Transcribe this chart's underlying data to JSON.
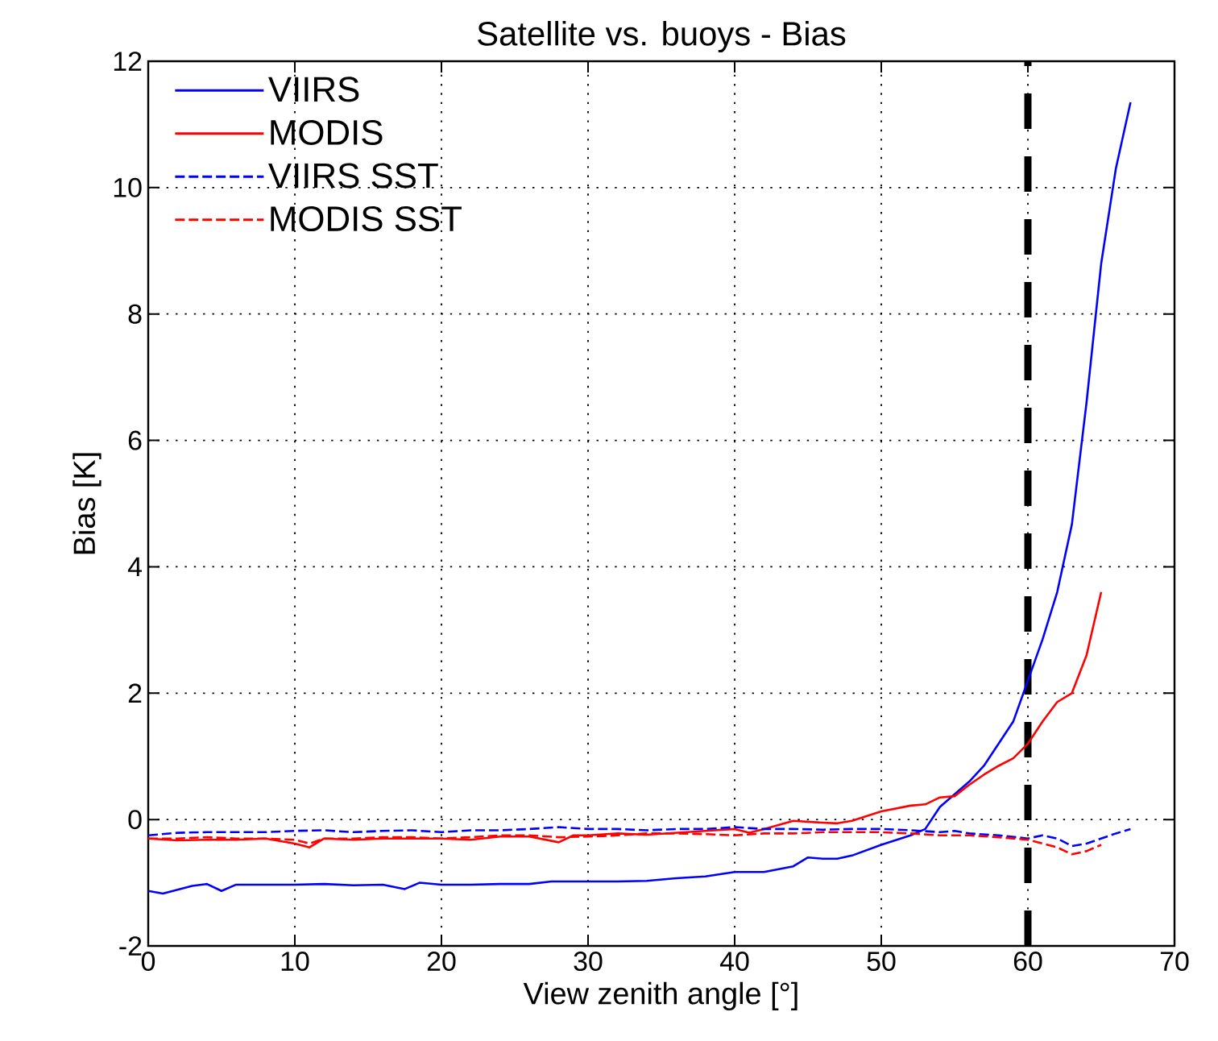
{
  "chart_data": {
    "type": "line",
    "title": "Satellite vs. buoys - Bias",
    "xlabel": "View zenith angle [°]",
    "ylabel": "Bias [K]",
    "xlim": [
      0,
      70
    ],
    "ylim": [
      -2,
      12
    ],
    "xticks": [
      0,
      10,
      20,
      30,
      40,
      50,
      60,
      70
    ],
    "yticks": [
      -2,
      0,
      2,
      4,
      6,
      8,
      10,
      12
    ],
    "grid": true,
    "legend": "top left",
    "ref_lines": [
      {
        "axis": "x",
        "value": 60,
        "color": "#000000",
        "line_style": "dashed"
      }
    ],
    "series": [
      {
        "name": "VIIRS",
        "color": "#0000ff",
        "line_style": "solid",
        "x": [
          0,
          1,
          3,
          4,
          5,
          6,
          8,
          10,
          12,
          14,
          16,
          17.5,
          18.5,
          20,
          22,
          24,
          26,
          27.5,
          30,
          32,
          34,
          36,
          38,
          40,
          42,
          44,
          45,
          46,
          47,
          48,
          50,
          52,
          53,
          54,
          55,
          56,
          57,
          58,
          59,
          60,
          61,
          62,
          63,
          64,
          65,
          66,
          67
        ],
        "values": [
          -1.13,
          -1.17,
          -1.05,
          -1.02,
          -1.13,
          -1.03,
          -1.03,
          -1.03,
          -1.02,
          -1.04,
          -1.03,
          -1.1,
          -1.0,
          -1.03,
          -1.03,
          -1.02,
          -1.02,
          -0.98,
          -0.98,
          -0.98,
          -0.97,
          -0.93,
          -0.9,
          -0.83,
          -0.83,
          -0.74,
          -0.6,
          -0.62,
          -0.62,
          -0.57,
          -0.4,
          -0.25,
          -0.15,
          0.2,
          0.4,
          0.6,
          0.85,
          1.2,
          1.55,
          2.2,
          2.85,
          3.6,
          4.67,
          6.6,
          8.8,
          10.3,
          11.35
        ]
      },
      {
        "name": "MODIS",
        "color": "#ff0000",
        "line_style": "solid",
        "x": [
          0,
          2,
          4,
          6,
          8,
          10,
          11,
          12,
          14,
          16,
          18,
          20,
          22,
          24,
          26,
          28,
          29,
          30,
          32,
          34,
          36,
          38,
          40,
          41,
          42,
          44,
          46,
          47,
          48,
          50,
          52,
          53,
          54,
          55,
          56,
          57,
          58,
          59,
          60,
          61,
          62,
          63,
          64,
          64.7,
          65
        ],
        "values": [
          -0.3,
          -0.33,
          -0.32,
          -0.32,
          -0.3,
          -0.38,
          -0.44,
          -0.3,
          -0.32,
          -0.3,
          -0.3,
          -0.3,
          -0.32,
          -0.27,
          -0.27,
          -0.36,
          -0.25,
          -0.25,
          -0.22,
          -0.24,
          -0.21,
          -0.18,
          -0.15,
          -0.21,
          -0.15,
          -0.02,
          -0.05,
          -0.06,
          -0.02,
          0.13,
          0.22,
          0.24,
          0.35,
          0.37,
          0.55,
          0.71,
          0.85,
          0.97,
          1.2,
          1.55,
          1.86,
          2.0,
          2.6,
          3.3,
          3.6
        ]
      },
      {
        "name": "VIIRS SST",
        "color": "#0000ff",
        "line_style": "dashed",
        "x": [
          0,
          2,
          4,
          6,
          8,
          10,
          12,
          14,
          16,
          18,
          20,
          22,
          24,
          26,
          28,
          30,
          32,
          34,
          36,
          38,
          40,
          42,
          44,
          46,
          48,
          50,
          52,
          54,
          55,
          56,
          58,
          60,
          61,
          62,
          63,
          64,
          65,
          66,
          67
        ],
        "values": [
          -0.25,
          -0.21,
          -0.2,
          -0.2,
          -0.2,
          -0.18,
          -0.17,
          -0.2,
          -0.18,
          -0.17,
          -0.2,
          -0.17,
          -0.17,
          -0.15,
          -0.12,
          -0.15,
          -0.15,
          -0.17,
          -0.15,
          -0.15,
          -0.12,
          -0.15,
          -0.15,
          -0.16,
          -0.15,
          -0.15,
          -0.17,
          -0.2,
          -0.18,
          -0.22,
          -0.25,
          -0.3,
          -0.25,
          -0.3,
          -0.42,
          -0.38,
          -0.3,
          -0.22,
          -0.15
        ]
      },
      {
        "name": "MODIS SST",
        "color": "#ff0000",
        "line_style": "dashed",
        "x": [
          0,
          2,
          4,
          6,
          8,
          10,
          11,
          12,
          14,
          16,
          18,
          20,
          22,
          24,
          26,
          28,
          30,
          32,
          34,
          36,
          38,
          40,
          42,
          44,
          46,
          48,
          50,
          52,
          54,
          56,
          58,
          60,
          61,
          62,
          63,
          64,
          65
        ],
        "values": [
          -0.3,
          -0.3,
          -0.28,
          -0.3,
          -0.3,
          -0.32,
          -0.38,
          -0.3,
          -0.3,
          -0.28,
          -0.28,
          -0.3,
          -0.28,
          -0.25,
          -0.25,
          -0.28,
          -0.27,
          -0.25,
          -0.22,
          -0.22,
          -0.23,
          -0.25,
          -0.22,
          -0.22,
          -0.2,
          -0.2,
          -0.2,
          -0.22,
          -0.25,
          -0.25,
          -0.28,
          -0.32,
          -0.38,
          -0.44,
          -0.55,
          -0.5,
          -0.4
        ]
      }
    ]
  }
}
